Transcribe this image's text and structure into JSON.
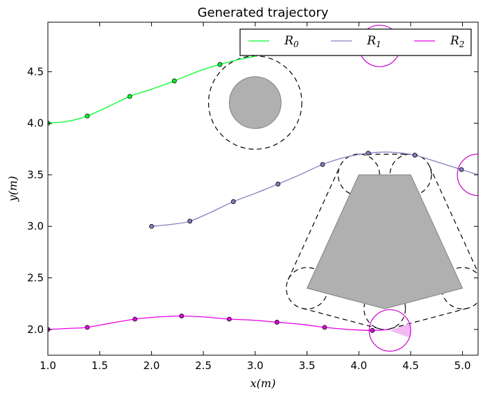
{
  "chart_data": {
    "type": "line",
    "title": "Generated trajectory",
    "xlabel": "x(m)",
    "ylabel": "y(m)",
    "xlim": [
      1.0,
      5.15
    ],
    "ylim": [
      1.75,
      4.98
    ],
    "grid": false,
    "legend_placement": "top-right",
    "xticks": [
      1.0,
      1.5,
      2.0,
      2.5,
      3.0,
      3.5,
      4.0,
      4.5,
      5.0
    ],
    "yticks": [
      2.0,
      2.5,
      3.0,
      3.5,
      4.0,
      4.5
    ],
    "xtick_labels": [
      "1.0",
      "1.5",
      "2.0",
      "2.5",
      "3.0",
      "3.5",
      "4.0",
      "4.5",
      "5.0"
    ],
    "ytick_labels": [
      "2.0",
      "2.5",
      "3.0",
      "3.5",
      "4.0",
      "4.5"
    ],
    "series": [
      {
        "name": "R",
        "subscript": "0",
        "color": "#00ff2a",
        "line": [
          [
            1.0,
            4.0
          ],
          [
            1.2,
            4.02
          ],
          [
            1.38,
            4.07
          ],
          [
            1.58,
            4.16
          ],
          [
            1.79,
            4.26
          ],
          [
            2.0,
            4.33
          ],
          [
            2.22,
            4.41
          ],
          [
            2.44,
            4.5
          ],
          [
            2.66,
            4.57
          ],
          [
            2.85,
            4.62
          ],
          [
            3.0,
            4.65
          ],
          [
            3.3,
            4.72
          ],
          [
            3.6,
            4.8
          ]
        ],
        "points": [
          [
            1.0,
            4.0
          ],
          [
            1.38,
            4.07
          ],
          [
            1.79,
            4.26
          ],
          [
            2.22,
            4.41
          ],
          [
            2.66,
            4.57
          ]
        ]
      },
      {
        "name": "R",
        "subscript": "1",
        "color": "#7f7fbf",
        "line": [
          [
            2.0,
            3.0
          ],
          [
            2.2,
            3.02
          ],
          [
            2.37,
            3.05
          ],
          [
            2.58,
            3.14
          ],
          [
            2.79,
            3.24
          ],
          [
            3.0,
            3.32
          ],
          [
            3.22,
            3.41
          ],
          [
            3.43,
            3.5
          ],
          [
            3.65,
            3.6
          ],
          [
            3.87,
            3.67
          ],
          [
            4.09,
            3.71
          ],
          [
            4.3,
            3.72
          ],
          [
            4.54,
            3.69
          ],
          [
            4.77,
            3.62
          ],
          [
            4.99,
            3.55
          ],
          [
            5.15,
            3.5
          ]
        ],
        "points": [
          [
            2.0,
            3.0
          ],
          [
            2.37,
            3.05
          ],
          [
            2.79,
            3.24
          ],
          [
            3.22,
            3.41
          ],
          [
            3.65,
            3.6
          ],
          [
            4.09,
            3.71
          ],
          [
            4.54,
            3.69
          ],
          [
            4.99,
            3.55
          ]
        ]
      },
      {
        "name": "R",
        "subscript": "2",
        "color": "#e600e6",
        "line": [
          [
            1.0,
            2.0
          ],
          [
            1.2,
            2.01
          ],
          [
            1.38,
            2.02
          ],
          [
            1.6,
            2.06
          ],
          [
            1.84,
            2.1
          ],
          [
            2.05,
            2.12
          ],
          [
            2.29,
            2.13
          ],
          [
            2.52,
            2.12
          ],
          [
            2.75,
            2.1
          ],
          [
            2.98,
            2.09
          ],
          [
            3.21,
            2.07
          ],
          [
            3.44,
            2.05
          ],
          [
            3.67,
            2.02
          ],
          [
            3.9,
            2.0
          ],
          [
            4.13,
            1.99
          ],
          [
            4.3,
            2.0
          ]
        ],
        "points": [
          [
            1.0,
            2.0
          ],
          [
            1.38,
            2.02
          ],
          [
            1.84,
            2.1
          ],
          [
            2.29,
            2.13
          ],
          [
            2.75,
            2.1
          ],
          [
            3.21,
            2.07
          ],
          [
            3.67,
            2.02
          ],
          [
            4.13,
            1.99
          ]
        ]
      }
    ],
    "obstacles": {
      "circle": {
        "center": [
          3.0,
          4.2
        ],
        "radius": 0.25,
        "safety_radius": 0.45
      },
      "polygon": [
        [
          4.0,
          3.5
        ],
        [
          4.5,
          3.5
        ],
        [
          5.0,
          2.4
        ],
        [
          4.25,
          2.2
        ],
        [
          3.5,
          2.4
        ]
      ],
      "vertex_safety_radius": 0.2
    },
    "robots": [
      {
        "center": [
          4.2,
          4.75
        ],
        "radius": 0.2
      },
      {
        "center": [
          5.15,
          3.5
        ],
        "radius": 0.2
      },
      {
        "center": [
          4.3,
          1.99
        ],
        "radius": 0.2
      }
    ],
    "colors": {
      "obstacle_fill": "#b0b0b0",
      "obstacle_edge": "#808080",
      "robot_ring": "#cc00cc",
      "robot_cone": "#f2b3f2"
    }
  }
}
